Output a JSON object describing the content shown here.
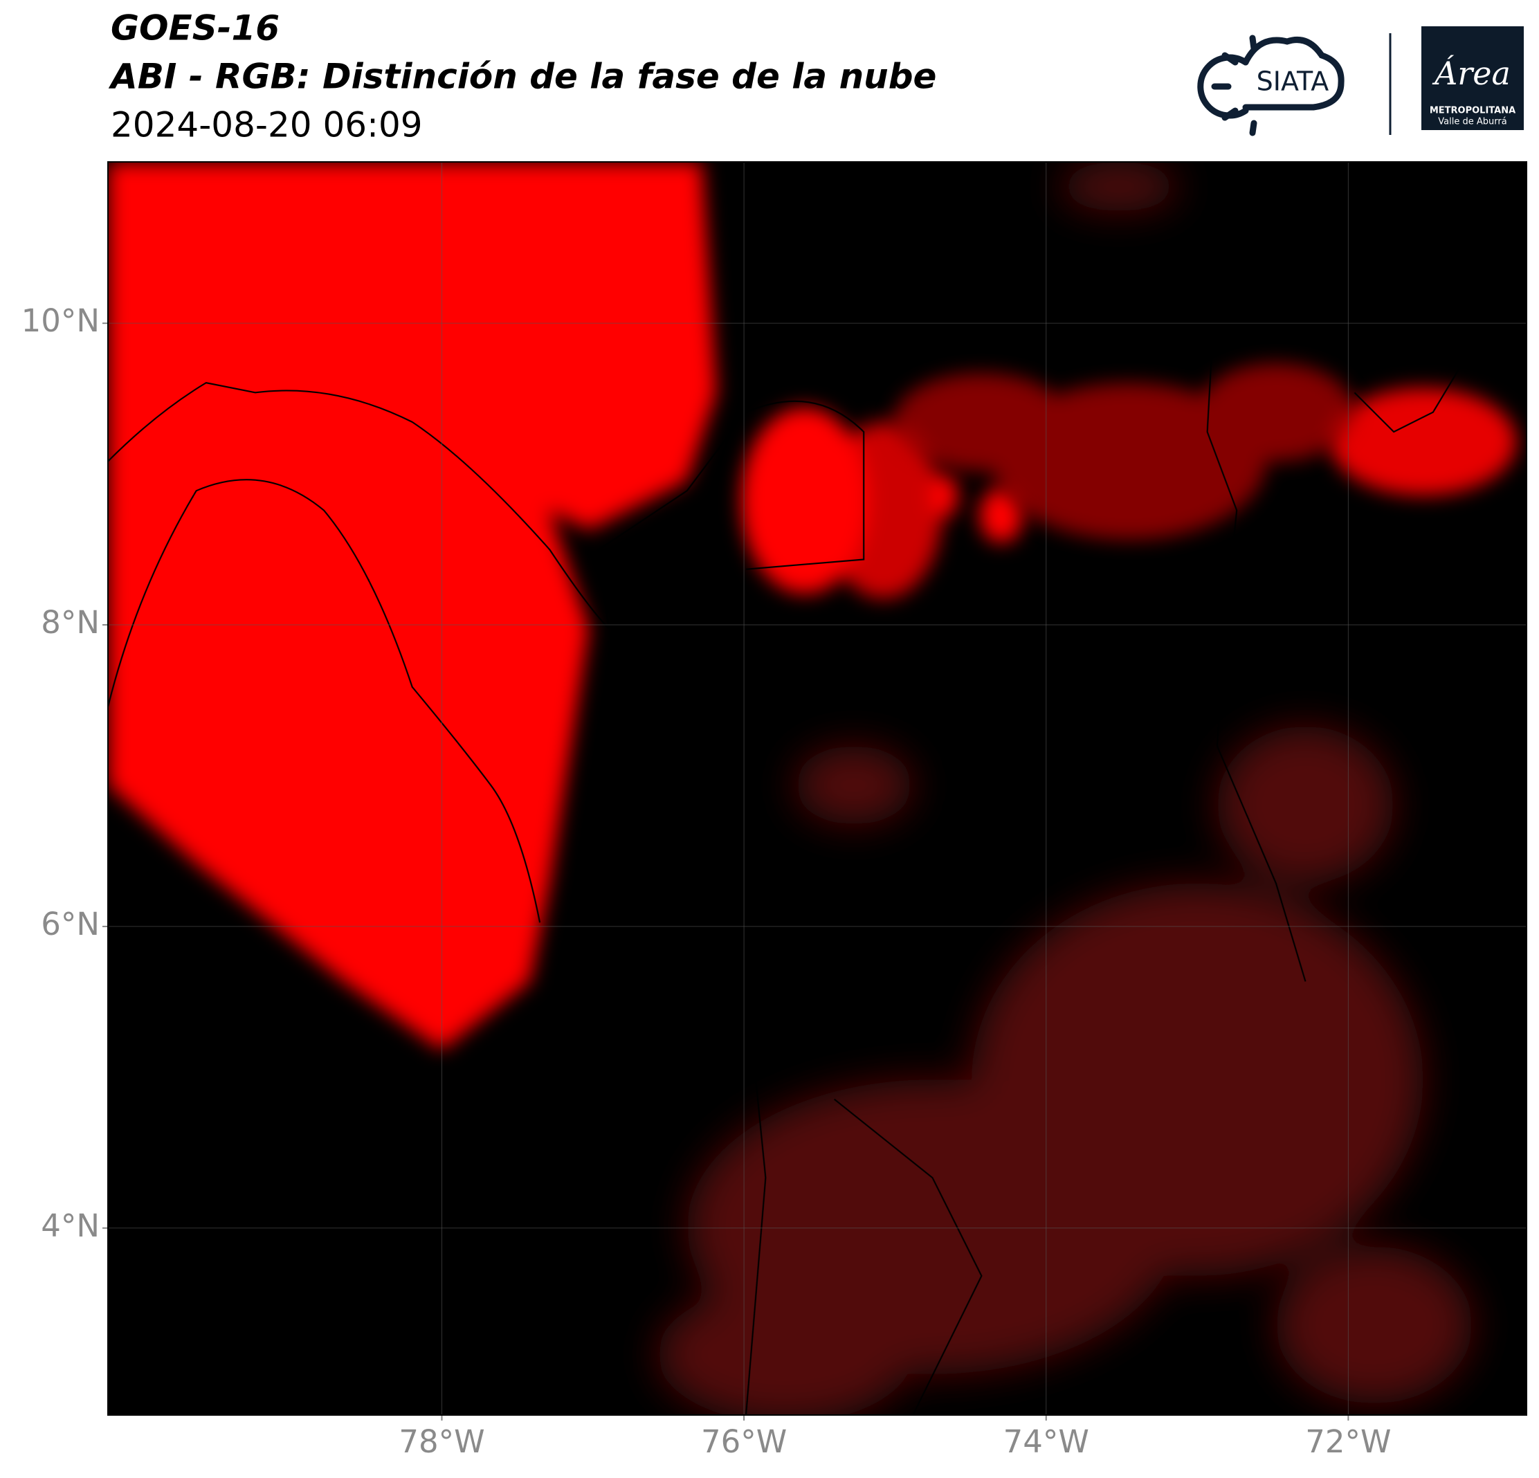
{
  "chart_data": {
    "type": "map",
    "title": "GOES-16",
    "subtitle": "ABI - RGB: Distinción de la fase de la nube",
    "timestamp": "2024-08-20 06:09",
    "xlim": [
      -80.21,
      -70.82
    ],
    "ylim": [
      2.76,
      11.07
    ],
    "xticks": [
      {
        "value": -78,
        "label": "78°W"
      },
      {
        "value": -76,
        "label": "76°W"
      },
      {
        "value": -74,
        "label": "74°W"
      },
      {
        "value": -72,
        "label": "72°W"
      }
    ],
    "yticks": [
      {
        "value": 4,
        "label": "4°N"
      },
      {
        "value": 6,
        "label": "6°N"
      },
      {
        "value": 8,
        "label": "8°N"
      },
      {
        "value": 10,
        "label": "10°N"
      }
    ],
    "grid": true
  },
  "logos": {
    "siata": "SIATA",
    "area": "Área",
    "area_line1": "METROPOLITANA",
    "area_line2": "Valle de Aburrá"
  }
}
